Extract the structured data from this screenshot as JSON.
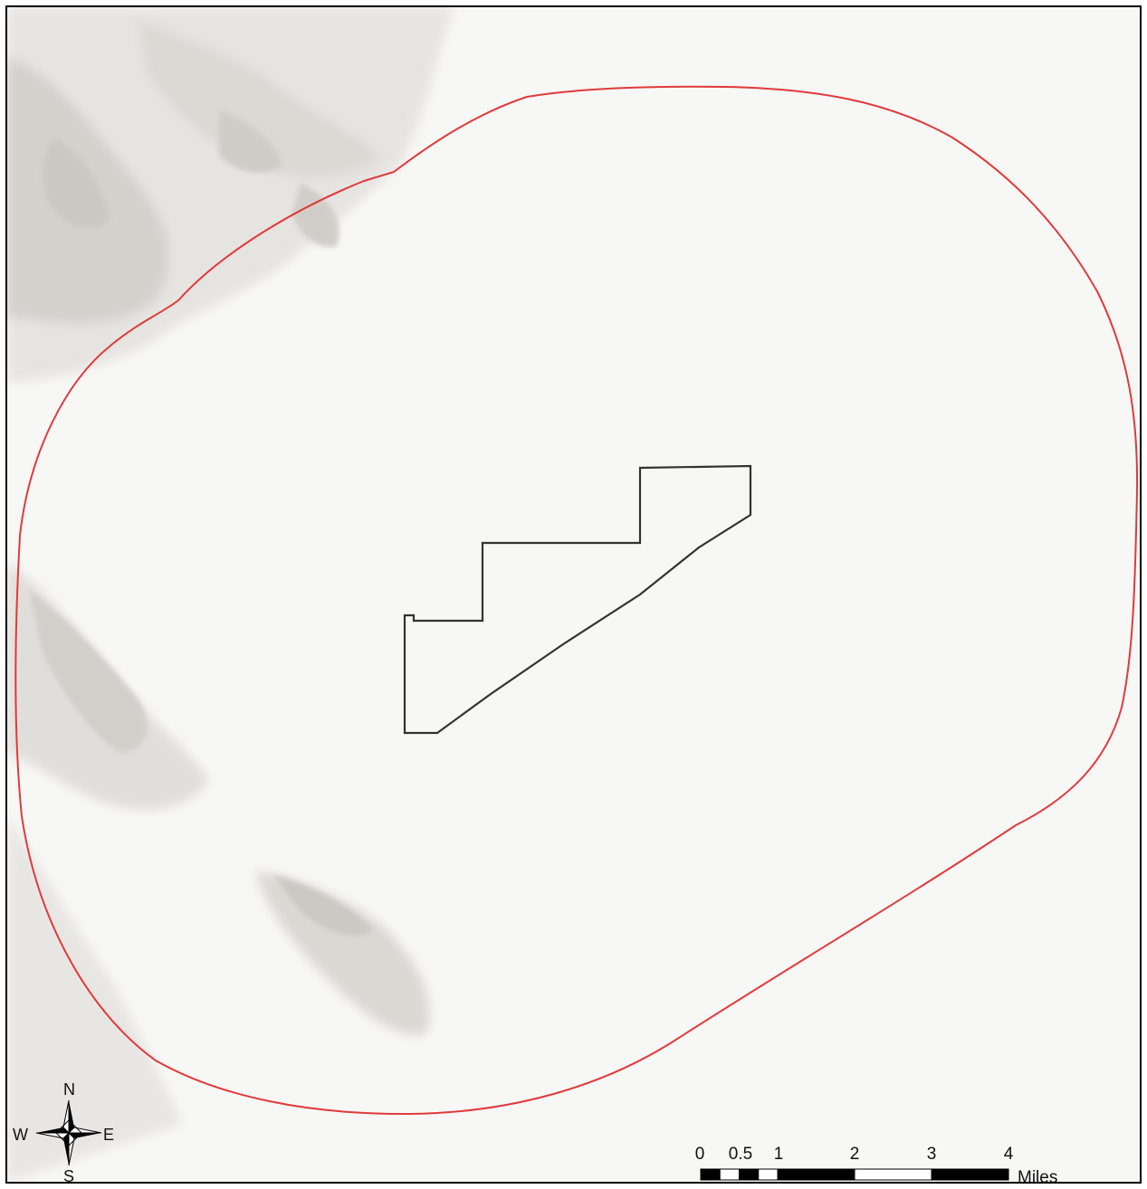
{
  "map": {
    "boundary_color": "#e03a3a",
    "site_outline_color": "#333333",
    "terrain_shadow_color": "#9a958f"
  },
  "north_arrow": {
    "icon": "compass-rose-icon",
    "n": "N",
    "s": "S",
    "e": "E",
    "w": "W"
  },
  "scale_bar": {
    "labels": [
      "0",
      "0.5",
      "1",
      "2",
      "3",
      "4"
    ],
    "units": "Miles"
  }
}
